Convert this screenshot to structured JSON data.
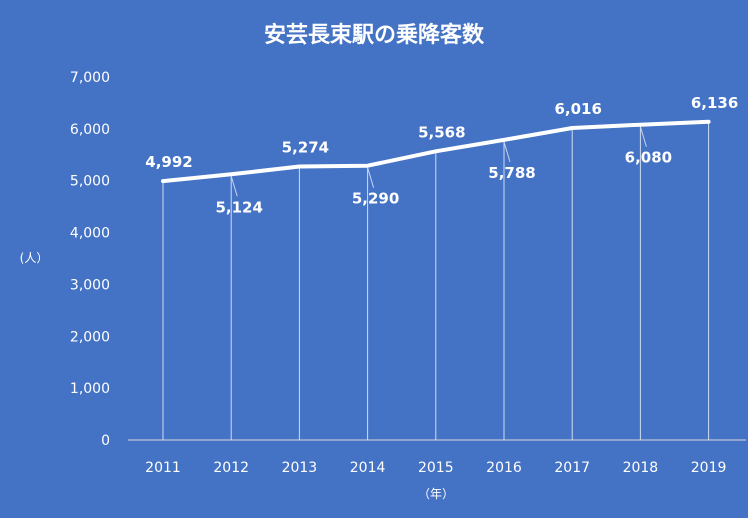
{
  "chart_data": {
    "type": "line",
    "title": "安芸長束駅の乗降客数",
    "xlabel": "（年）",
    "ylabel": "(人）",
    "x": [
      "2011",
      "2012",
      "2013",
      "2014",
      "2015",
      "2016",
      "2017",
      "2018",
      "2019"
    ],
    "series": [
      {
        "values": [
          4992,
          5124,
          5274,
          5290,
          5568,
          5788,
          6016,
          6080,
          6136
        ]
      }
    ],
    "data_labels": [
      "4,992",
      "5,124",
      "5,274",
      "5,290",
      "5,568",
      "5,788",
      "6,016",
      "6,080",
      "6,136"
    ],
    "y_ticks": [
      "0",
      "1,000",
      "2,000",
      "3,000",
      "4,000",
      "5,000",
      "6,000",
      "7,000"
    ],
    "ylim": [
      0,
      7000
    ],
    "grid": false,
    "drop_lines": true,
    "colors": {
      "background": "#4472c4",
      "line": "#ffffff",
      "text": "#ffffff"
    }
  }
}
